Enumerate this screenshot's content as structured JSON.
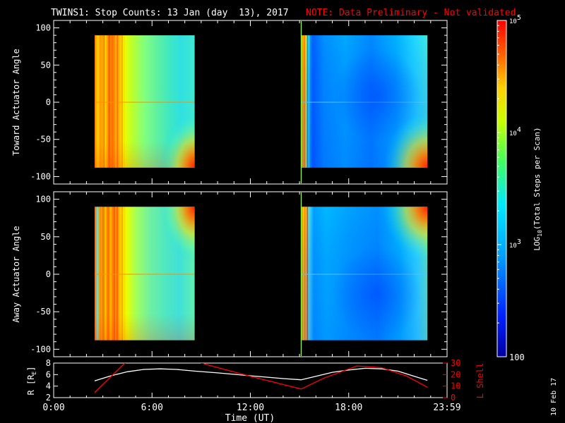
{
  "header": {
    "title": "TWINS1: Stop Counts: 13 Jan (day  13), 2017",
    "note": "NOTE: Data Preliminary - Not validated"
  },
  "colors": {
    "background": "#000000",
    "axes": "#ffffff",
    "note": "#ff0000",
    "r_trace": "#ffffff",
    "lshell_trace": "#ff0000"
  },
  "colorbar": {
    "label": "LOG10(Total Steps per Scan)",
    "label_parts": {
      "pre": "LOG",
      "sub": "10",
      "post": "(Total Steps per Scan)"
    },
    "ticks": [
      {
        "value": 100,
        "base": "100",
        "exp": ""
      },
      {
        "value": 1000,
        "base": "10",
        "exp": "3"
      },
      {
        "value": 10000,
        "base": "10",
        "exp": "4"
      },
      {
        "value": 100000,
        "base": "10",
        "exp": "5"
      }
    ],
    "range": [
      100,
      100000
    ],
    "scale": "log",
    "colormap": "rainbow (blue → cyan → green → yellow → red)"
  },
  "chart_data": [
    {
      "type": "heatmap",
      "name": "toward",
      "ylabel": "Toward Actuator Angle",
      "xlim": [
        0,
        24
      ],
      "ylim": [
        -110,
        110
      ],
      "yticks": [
        -100,
        -50,
        0,
        50,
        100
      ],
      "ytick_labels": [
        "-100",
        "-50",
        "0",
        "50",
        "100"
      ],
      "data_blocks": [
        {
          "t_start": 2.5,
          "t_end": 8.6,
          "angle_range": [
            -88,
            90
          ],
          "level_log10": 3.8
        },
        {
          "t_start": 15.1,
          "t_end": 22.8,
          "angle_range": [
            -88,
            90
          ],
          "level_log10": 3.0
        }
      ]
    },
    {
      "type": "heatmap",
      "name": "away",
      "ylabel": "Away Actuator Angle",
      "xlim": [
        0,
        24
      ],
      "ylim": [
        -110,
        110
      ],
      "yticks": [
        -100,
        -50,
        0,
        50,
        100
      ],
      "ytick_labels": [
        "-100",
        "-50",
        "0",
        "50",
        "100"
      ],
      "data_blocks": [
        {
          "t_start": 2.5,
          "t_end": 8.6,
          "angle_range": [
            -88,
            90
          ],
          "level_log10": 3.8
        },
        {
          "t_start": 15.1,
          "t_end": 22.8,
          "angle_range": [
            -88,
            90
          ],
          "level_log10": 3.0
        }
      ]
    },
    {
      "type": "line",
      "name": "ephemeris",
      "xlabel": "Time (UT)",
      "xlim": [
        0,
        24
      ],
      "xticks": [
        0,
        6,
        12,
        18,
        24
      ],
      "xtick_labels": [
        "0:00",
        "6:00",
        "12:00",
        "18:00",
        "23:59"
      ],
      "left_axis": {
        "label": "R [RE]",
        "label_parts": {
          "pre": "R [R",
          "sub": "E",
          "post": "]"
        },
        "ylim": [
          2,
          8
        ],
        "ticks": [
          2,
          4,
          6,
          8
        ]
      },
      "right_axis": {
        "label": "L Shell",
        "ylim": [
          0,
          30
        ],
        "ticks": [
          0,
          10,
          20,
          30
        ]
      },
      "series": [
        {
          "name": "R",
          "axis": "left",
          "x": [
            2.5,
            3.5,
            4.5,
            5.5,
            6.5,
            7.5,
            8.6,
            10,
            12,
            14,
            15.1,
            16,
            17,
            18,
            19,
            20,
            21,
            22,
            22.8
          ],
          "y": [
            4.9,
            5.8,
            6.5,
            6.9,
            7.0,
            6.9,
            6.6,
            6.3,
            5.8,
            5.3,
            5.1,
            5.7,
            6.4,
            6.8,
            7.1,
            7.0,
            6.6,
            5.7,
            5.0
          ]
        },
        {
          "name": "L Shell",
          "axis": "right",
          "x": [
            2.5,
            4.5,
            5.0,
            8.6,
            9.5,
            12,
            15.1,
            16.5,
            18.5,
            20,
            21.5,
            22.8
          ],
          "y": [
            4.5,
            32,
            32,
            32,
            28,
            18.5,
            7.5,
            17,
            27.5,
            26,
            19,
            9
          ]
        }
      ]
    }
  ],
  "footer": {
    "date_stamp": "10 Feb 17"
  }
}
